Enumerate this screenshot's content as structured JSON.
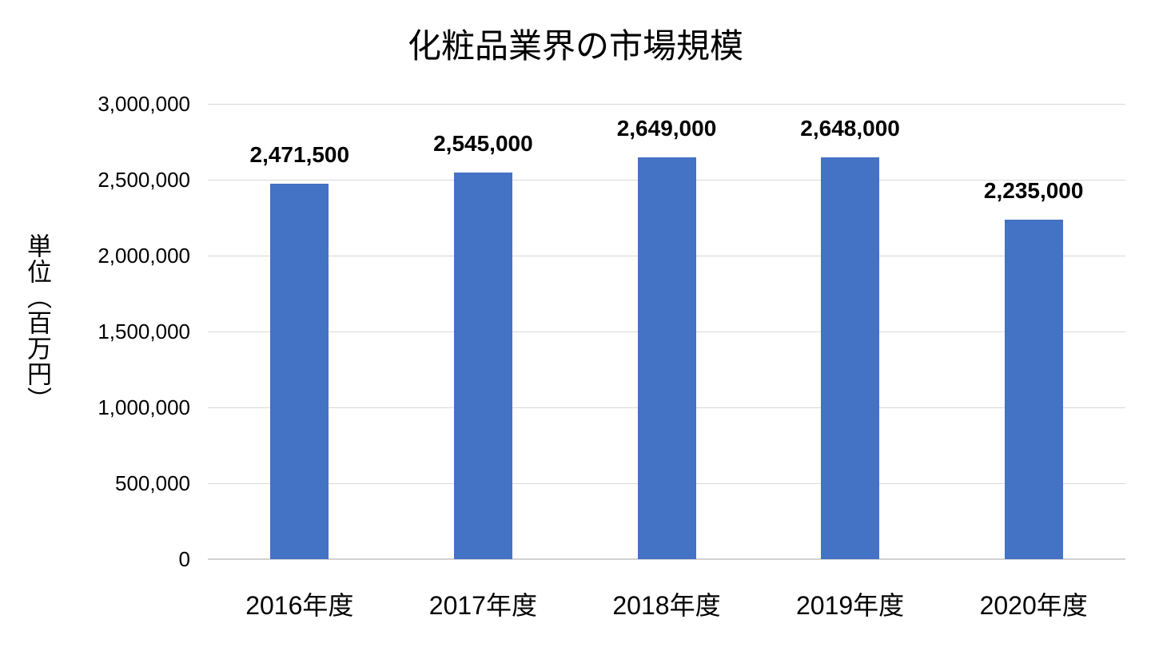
{
  "chart_data": {
    "type": "bar",
    "title": "化粧品業界の市場規模",
    "categories": [
      "2016年度",
      "2017年度",
      "2018年度",
      "2019年度",
      "2020年度"
    ],
    "values": [
      2471500,
      2545000,
      2649000,
      2648000,
      2235000
    ],
    "data_labels": [
      "2,471,500",
      "2,545,000",
      "2,649,000",
      "2,648,000",
      "2,235,000"
    ],
    "xlabel": "",
    "ylabel": "単位（百万円）",
    "ylim": [
      0,
      3000000
    ],
    "ytick_interval": 500000,
    "yticks": [
      "0",
      "500,000",
      "1,000,000",
      "1,500,000",
      "2,000,000",
      "2,500,000",
      "3,000,000"
    ],
    "grid": true,
    "legend": "none",
    "bar_color": "#4472C4",
    "gridline_color": "#D9D9D9",
    "axis_line_color": "#D2D2D2",
    "text_color": "#000000"
  }
}
